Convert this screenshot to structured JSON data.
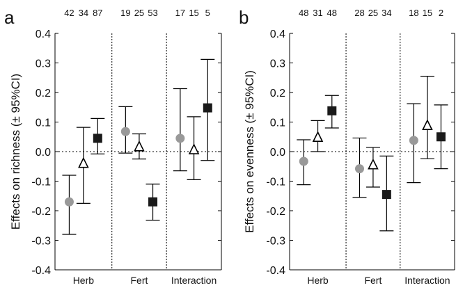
{
  "chart_data": [
    {
      "type": "scatter",
      "panel_label": "a",
      "ylabel": "Effects on richness (± 95%CI)",
      "ylim": [
        -0.4,
        0.4
      ],
      "yticks": [
        -0.4,
        -0.3,
        -0.2,
        -0.1,
        0.0,
        0.1,
        0.2,
        0.3,
        0.4
      ],
      "ytick_labels": [
        "-0.4",
        "-0.3",
        "-0.2",
        "-0.1",
        "0.0",
        "0.1",
        "0.2",
        "0.3",
        "0.4"
      ],
      "groups": [
        "Herb",
        "Fert",
        "Interaction"
      ],
      "zero_line": true,
      "series": [
        {
          "marker": "circle",
          "color": "#999999",
          "points": [
            {
              "group": "Herb",
              "n": "42",
              "y": -0.17,
              "lo": -0.28,
              "hi": -0.08
            },
            {
              "group": "Fert",
              "n": "19",
              "y": 0.068,
              "lo": -0.005,
              "hi": 0.152
            },
            {
              "group": "Interaction",
              "n": "17",
              "y": 0.045,
              "lo": -0.065,
              "hi": 0.213
            }
          ]
        },
        {
          "marker": "triangle-open",
          "color": "#000000",
          "points": [
            {
              "group": "Herb",
              "n": "34",
              "y": -0.04,
              "lo": -0.175,
              "hi": 0.082
            },
            {
              "group": "Fert",
              "n": "25",
              "y": 0.016,
              "lo": -0.025,
              "hi": 0.06
            },
            {
              "group": "Interaction",
              "n": "15",
              "y": 0.006,
              "lo": -0.095,
              "hi": 0.118
            }
          ]
        },
        {
          "marker": "square",
          "color": "#1a1a1a",
          "points": [
            {
              "group": "Herb",
              "n": "87",
              "y": 0.045,
              "lo": -0.008,
              "hi": 0.112
            },
            {
              "group": "Fert",
              "n": "53",
              "y": -0.17,
              "lo": -0.232,
              "hi": -0.11
            },
            {
              "group": "Interaction",
              "n": "5",
              "y": 0.148,
              "lo": -0.03,
              "hi": 0.312
            }
          ]
        }
      ]
    },
    {
      "type": "scatter",
      "panel_label": "b",
      "ylabel": "Effects on evenness (± 95%CI)",
      "ylim": [
        -0.4,
        0.4
      ],
      "yticks": [
        -0.4,
        -0.3,
        -0.2,
        -0.1,
        0.0,
        0.1,
        0.2,
        0.3,
        0.4
      ],
      "ytick_labels": [
        "-0.4",
        "-0.3",
        "-0.2",
        "-0.1",
        "0.0",
        "0.1",
        "0.2",
        "0.3",
        "0.4"
      ],
      "groups": [
        "Herb",
        "Fert",
        "Interaction"
      ],
      "zero_line": true,
      "series": [
        {
          "marker": "circle",
          "color": "#999999",
          "points": [
            {
              "group": "Herb",
              "n": "48",
              "y": -0.033,
              "lo": -0.112,
              "hi": 0.04
            },
            {
              "group": "Fert",
              "n": "28",
              "y": -0.058,
              "lo": -0.155,
              "hi": 0.046
            },
            {
              "group": "Interaction",
              "n": "18",
              "y": 0.038,
              "lo": -0.105,
              "hi": 0.162
            }
          ]
        },
        {
          "marker": "triangle-open",
          "color": "#000000",
          "points": [
            {
              "group": "Herb",
              "n": "31",
              "y": 0.048,
              "lo": 0.0,
              "hi": 0.105
            },
            {
              "group": "Fert",
              "n": "25",
              "y": -0.045,
              "lo": -0.12,
              "hi": 0.014
            },
            {
              "group": "Interaction",
              "n": "15",
              "y": 0.088,
              "lo": -0.024,
              "hi": 0.255
            }
          ]
        },
        {
          "marker": "square",
          "color": "#1a1a1a",
          "points": [
            {
              "group": "Herb",
              "n": "48",
              "y": 0.138,
              "lo": 0.08,
              "hi": 0.19
            },
            {
              "group": "Fert",
              "n": "34",
              "y": -0.145,
              "lo": -0.268,
              "hi": -0.015
            },
            {
              "group": "Interaction",
              "n": "2",
              "y": 0.05,
              "lo": -0.058,
              "hi": 0.158
            }
          ]
        }
      ]
    }
  ]
}
